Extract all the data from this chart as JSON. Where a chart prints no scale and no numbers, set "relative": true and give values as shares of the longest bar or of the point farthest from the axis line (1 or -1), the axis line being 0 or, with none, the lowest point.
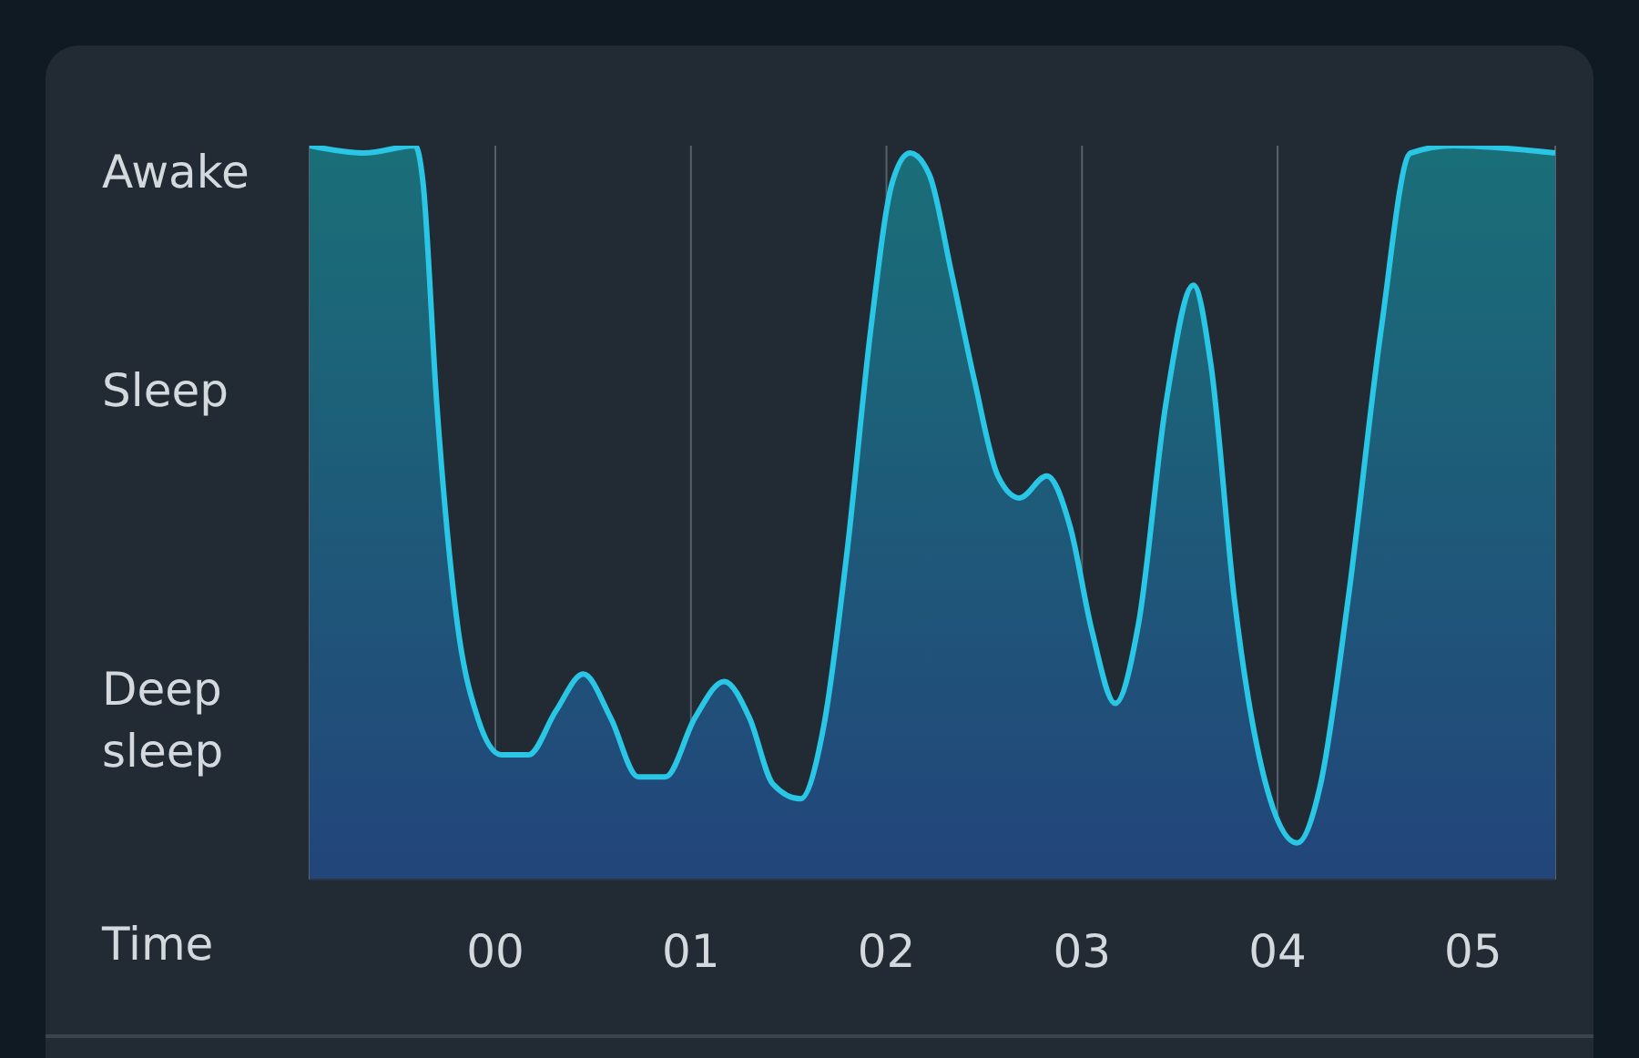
{
  "chart_data": {
    "type": "area",
    "xlabel": "Time",
    "grid": "x",
    "marker": "none",
    "relative": true,
    "annotations": [
      "Awake",
      "Sleep",
      "Deep sleep"
    ],
    "xlim": [
      -0.95,
      5.42
    ],
    "xticks": [
      {
        "value": 0,
        "label": "00"
      },
      {
        "value": 1,
        "label": "01"
      },
      {
        "value": 2,
        "label": "02"
      },
      {
        "value": 3,
        "label": "03"
      },
      {
        "value": 4,
        "label": "04"
      },
      {
        "value": 5,
        "label": "05"
      }
    ],
    "series": [
      {
        "color": "#2ac6e6",
        "x": [
          -0.95,
          -0.67,
          -0.41,
          -0.37,
          -0.3,
          -0.2,
          -0.09,
          0.03,
          0.17,
          0.31,
          0.45,
          0.59,
          0.73,
          0.87,
          1.02,
          1.17,
          1.3,
          1.42,
          1.56,
          1.68,
          1.8,
          1.92,
          2.03,
          2.12,
          2.22,
          2.33,
          2.45,
          2.57,
          2.68,
          2.82,
          2.94,
          3.05,
          3.17,
          3.29,
          3.43,
          3.57,
          3.66,
          3.78,
          3.94,
          4.1,
          4.22,
          4.36,
          4.53,
          4.68,
          4.9,
          5.42
        ],
        "values": [
          1.0,
          0.99,
          1.0,
          0.95,
          0.65,
          0.36,
          0.22,
          0.17,
          0.17,
          0.23,
          0.28,
          0.22,
          0.14,
          0.14,
          0.22,
          0.27,
          0.22,
          0.13,
          0.11,
          0.21,
          0.45,
          0.75,
          0.95,
          0.99,
          0.96,
          0.83,
          0.68,
          0.55,
          0.52,
          0.55,
          0.48,
          0.34,
          0.24,
          0.35,
          0.65,
          0.81,
          0.7,
          0.38,
          0.13,
          0.05,
          0.13,
          0.38,
          0.75,
          0.99,
          1.0,
          0.99
        ]
      }
    ]
  }
}
